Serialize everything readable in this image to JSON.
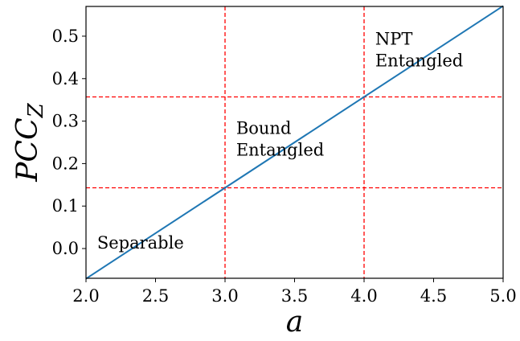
{
  "chart_data": {
    "type": "line",
    "xlabel": "a",
    "ylabel": "PCC",
    "ylabel_subscript": "Z",
    "xlim": [
      2.0,
      5.0
    ],
    "ylim": [
      -0.07,
      0.57
    ],
    "xticks": [
      2.0,
      2.5,
      3.0,
      3.5,
      4.0,
      4.5,
      5.0
    ],
    "xtick_labels": [
      "2.0",
      "2.5",
      "3.0",
      "3.5",
      "4.0",
      "4.5",
      "5.0"
    ],
    "yticks": [
      0.0,
      0.1,
      0.2,
      0.3,
      0.4,
      0.5
    ],
    "ytick_labels": [
      "0.0",
      "0.1",
      "0.2",
      "0.3",
      "0.4",
      "0.5"
    ],
    "grid": false,
    "series": [
      {
        "color": "#1f77b4",
        "x": [
          2.0,
          5.0
        ],
        "y": [
          -0.071,
          0.571
        ]
      }
    ],
    "reference_lines": {
      "color": "#ff0000",
      "style": "dashed",
      "vertical_x": [
        3.0,
        4.0
      ],
      "horizontal_y": [
        0.143,
        0.357
      ]
    },
    "annotations": [
      {
        "id": "separable",
        "lines": [
          "Separable"
        ],
        "x": 2.08,
        "y": 0.0
      },
      {
        "id": "bound",
        "lines": [
          "Bound",
          "Entangled"
        ],
        "x": 3.08,
        "y": 0.27
      },
      {
        "id": "npt",
        "lines": [
          "NPT",
          "Entangled"
        ],
        "x": 4.08,
        "y": 0.48
      }
    ]
  }
}
